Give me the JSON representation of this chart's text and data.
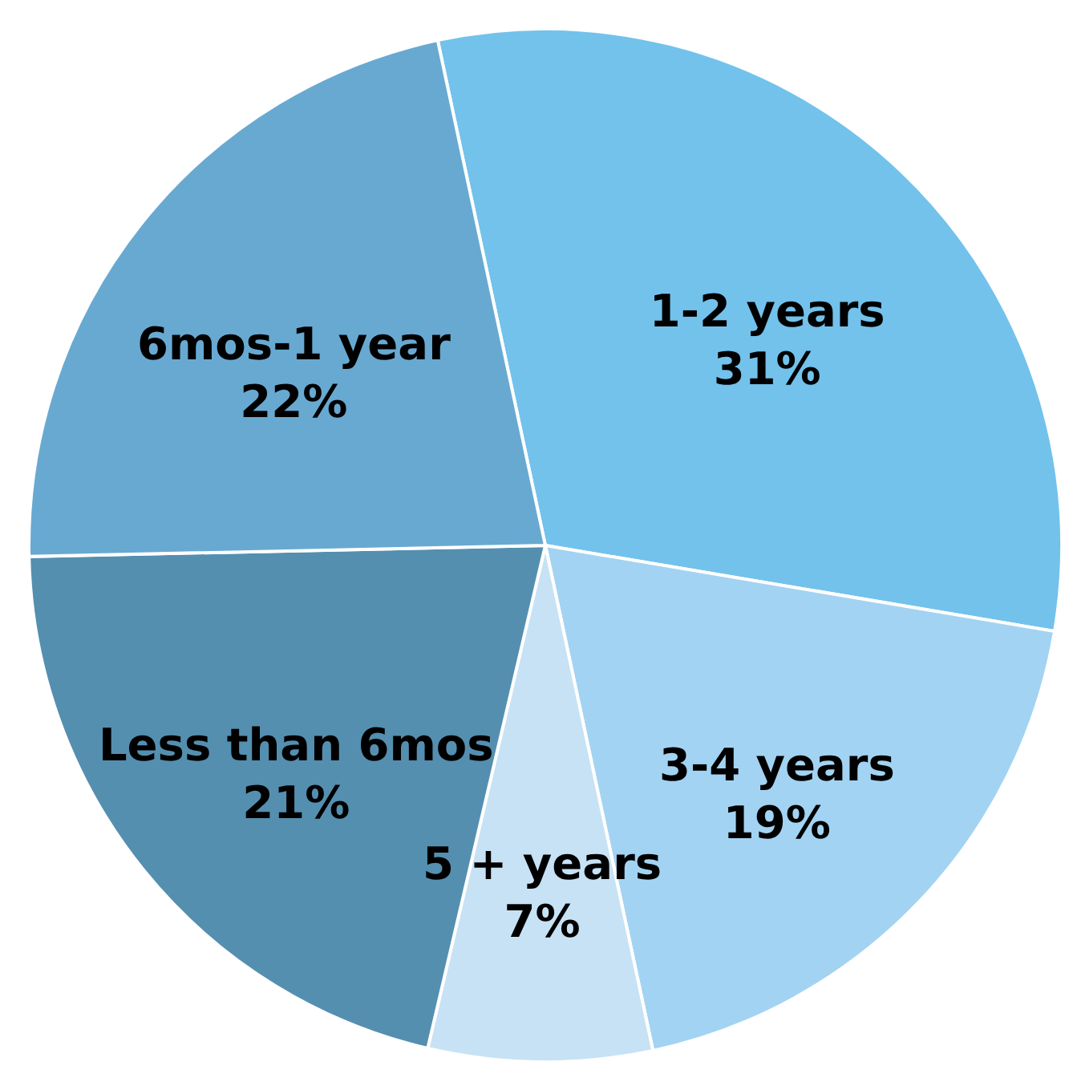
{
  "chart_data": {
    "type": "pie",
    "categories": [
      "1-2 years",
      "3-4 years",
      "5 + years",
      "Less than 6mos",
      "6mos-1 year"
    ],
    "values": [
      31,
      19,
      7,
      21,
      22
    ],
    "colors": [
      "#72c2ec",
      "#a3d3f2",
      "#c7e2f5",
      "#548fb0",
      "#68a9d2"
    ],
    "value_labels": [
      "31%",
      "19%",
      "7%",
      "21%",
      "22%"
    ]
  }
}
